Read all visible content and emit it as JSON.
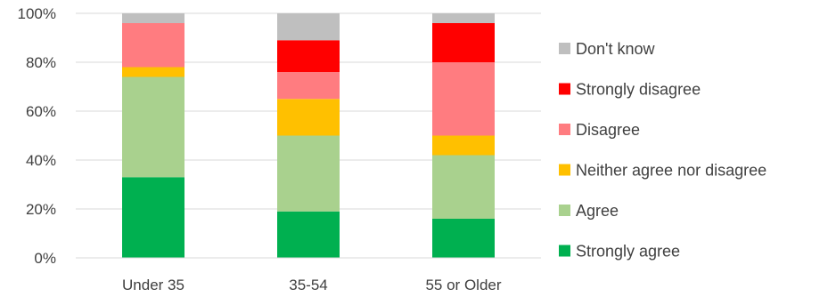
{
  "chart_data": {
    "type": "bar",
    "stacked": true,
    "orientation": "vertical",
    "categories": [
      "Under 35",
      "35-54",
      "55 or Older"
    ],
    "ylim": [
      0,
      100
    ],
    "yticks": [
      "0%",
      "20%",
      "40%",
      "60%",
      "80%",
      "100%"
    ],
    "ytick_values": [
      0,
      20,
      40,
      60,
      80,
      100
    ],
    "grid": true,
    "legend_placement": "right",
    "series": [
      {
        "name": "Strongly agree",
        "color": "#00b050",
        "values": [
          33,
          19,
          16
        ]
      },
      {
        "name": "Agree",
        "color": "#a9d18e",
        "values": [
          41,
          31,
          26
        ]
      },
      {
        "name": "Neither agree nor disagree",
        "color": "#ffc000",
        "values": [
          4,
          15,
          8
        ]
      },
      {
        "name": "Disagree",
        "color": "#ff7c80",
        "values": [
          18,
          11,
          30
        ]
      },
      {
        "name": "Strongly disagree",
        "color": "#ff0000",
        "values": [
          0,
          13,
          16
        ]
      },
      {
        "name": "Don't know",
        "color": "#bfbfbf",
        "values": [
          4,
          11,
          4
        ]
      }
    ],
    "legend_order": [
      "Don't know",
      "Strongly disagree",
      "Disagree",
      "Neither agree nor disagree",
      "Agree",
      "Strongly agree"
    ]
  }
}
